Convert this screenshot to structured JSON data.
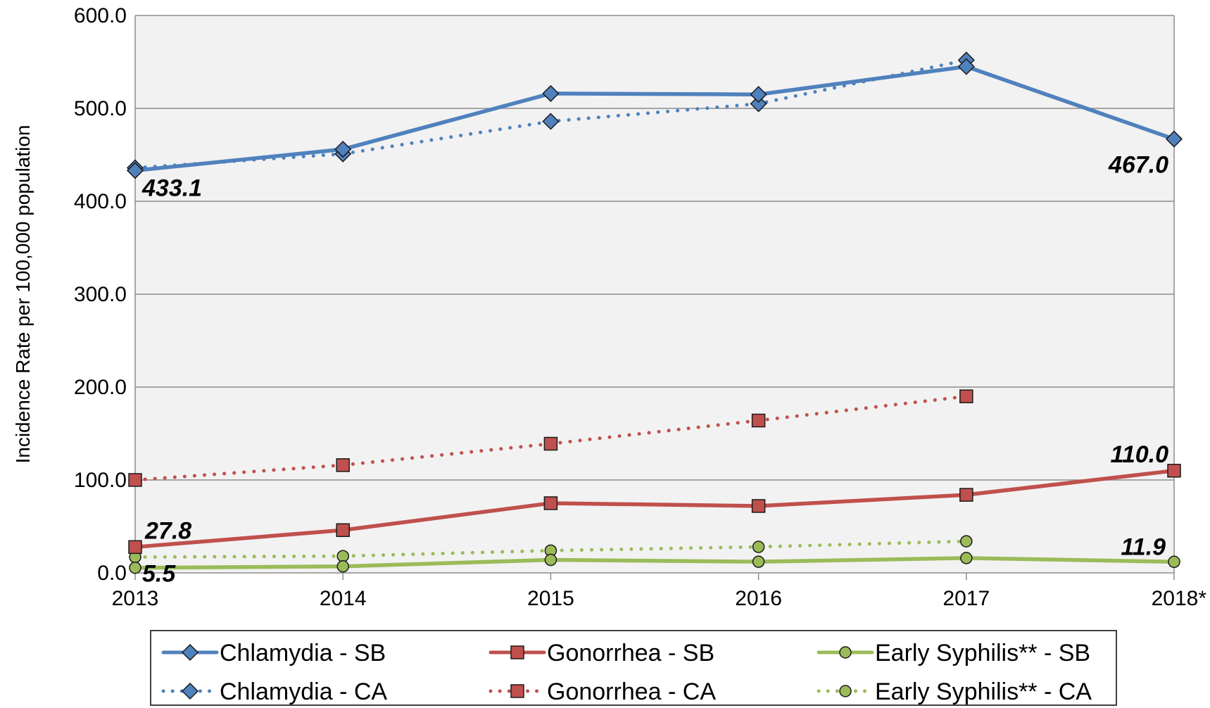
{
  "chart_data": {
    "type": "line",
    "title": "",
    "xlabel": "",
    "ylabel": "Incidence Rate per 100,000 population",
    "categories": [
      "2013",
      "2014",
      "2015",
      "2016",
      "2017",
      "2018*"
    ],
    "ylim": [
      0,
      600
    ],
    "y_ticks": [
      "0.0",
      "100.0",
      "200.0",
      "300.0",
      "400.0",
      "500.0",
      "600.0"
    ],
    "grid": true,
    "legend_position": "bottom",
    "series": [
      {
        "name": "Chlamydia - SB",
        "color": "#4f81bd",
        "style": "solid",
        "marker": "diamond",
        "values": [
          433.1,
          456,
          516,
          515,
          545,
          467.0
        ]
      },
      {
        "name": "Gonorrhea - SB",
        "color": "#c0504d",
        "style": "solid",
        "marker": "square",
        "values": [
          27.8,
          46,
          75,
          72,
          84,
          110.0
        ]
      },
      {
        "name": "Early Syphilis** - SB",
        "color": "#9bbb59",
        "style": "solid",
        "marker": "circle",
        "values": [
          5.5,
          7,
          14,
          12,
          16,
          11.9
        ]
      },
      {
        "name": "Chlamydia - CA",
        "color": "#4f81bd",
        "style": "dotted",
        "marker": "diamond",
        "values": [
          436,
          451,
          486,
          505,
          552,
          null
        ]
      },
      {
        "name": "Gonorrhea - CA",
        "color": "#c0504d",
        "style": "dotted",
        "marker": "square",
        "values": [
          100,
          116,
          139,
          164,
          190,
          null
        ]
      },
      {
        "name": "Early Syphilis** - CA",
        "color": "#9bbb59",
        "style": "dotted",
        "marker": "circle",
        "values": [
          17,
          18,
          24,
          28,
          34,
          null
        ]
      }
    ],
    "data_labels": [
      {
        "series": 0,
        "index": 0,
        "text": "433.1"
      },
      {
        "series": 0,
        "index": 5,
        "text": "467.0"
      },
      {
        "series": 1,
        "index": 0,
        "text": "27.8"
      },
      {
        "series": 1,
        "index": 5,
        "text": "110.0"
      },
      {
        "series": 2,
        "index": 0,
        "text": "5.5"
      },
      {
        "series": 2,
        "index": 5,
        "text": "11.9"
      }
    ]
  }
}
